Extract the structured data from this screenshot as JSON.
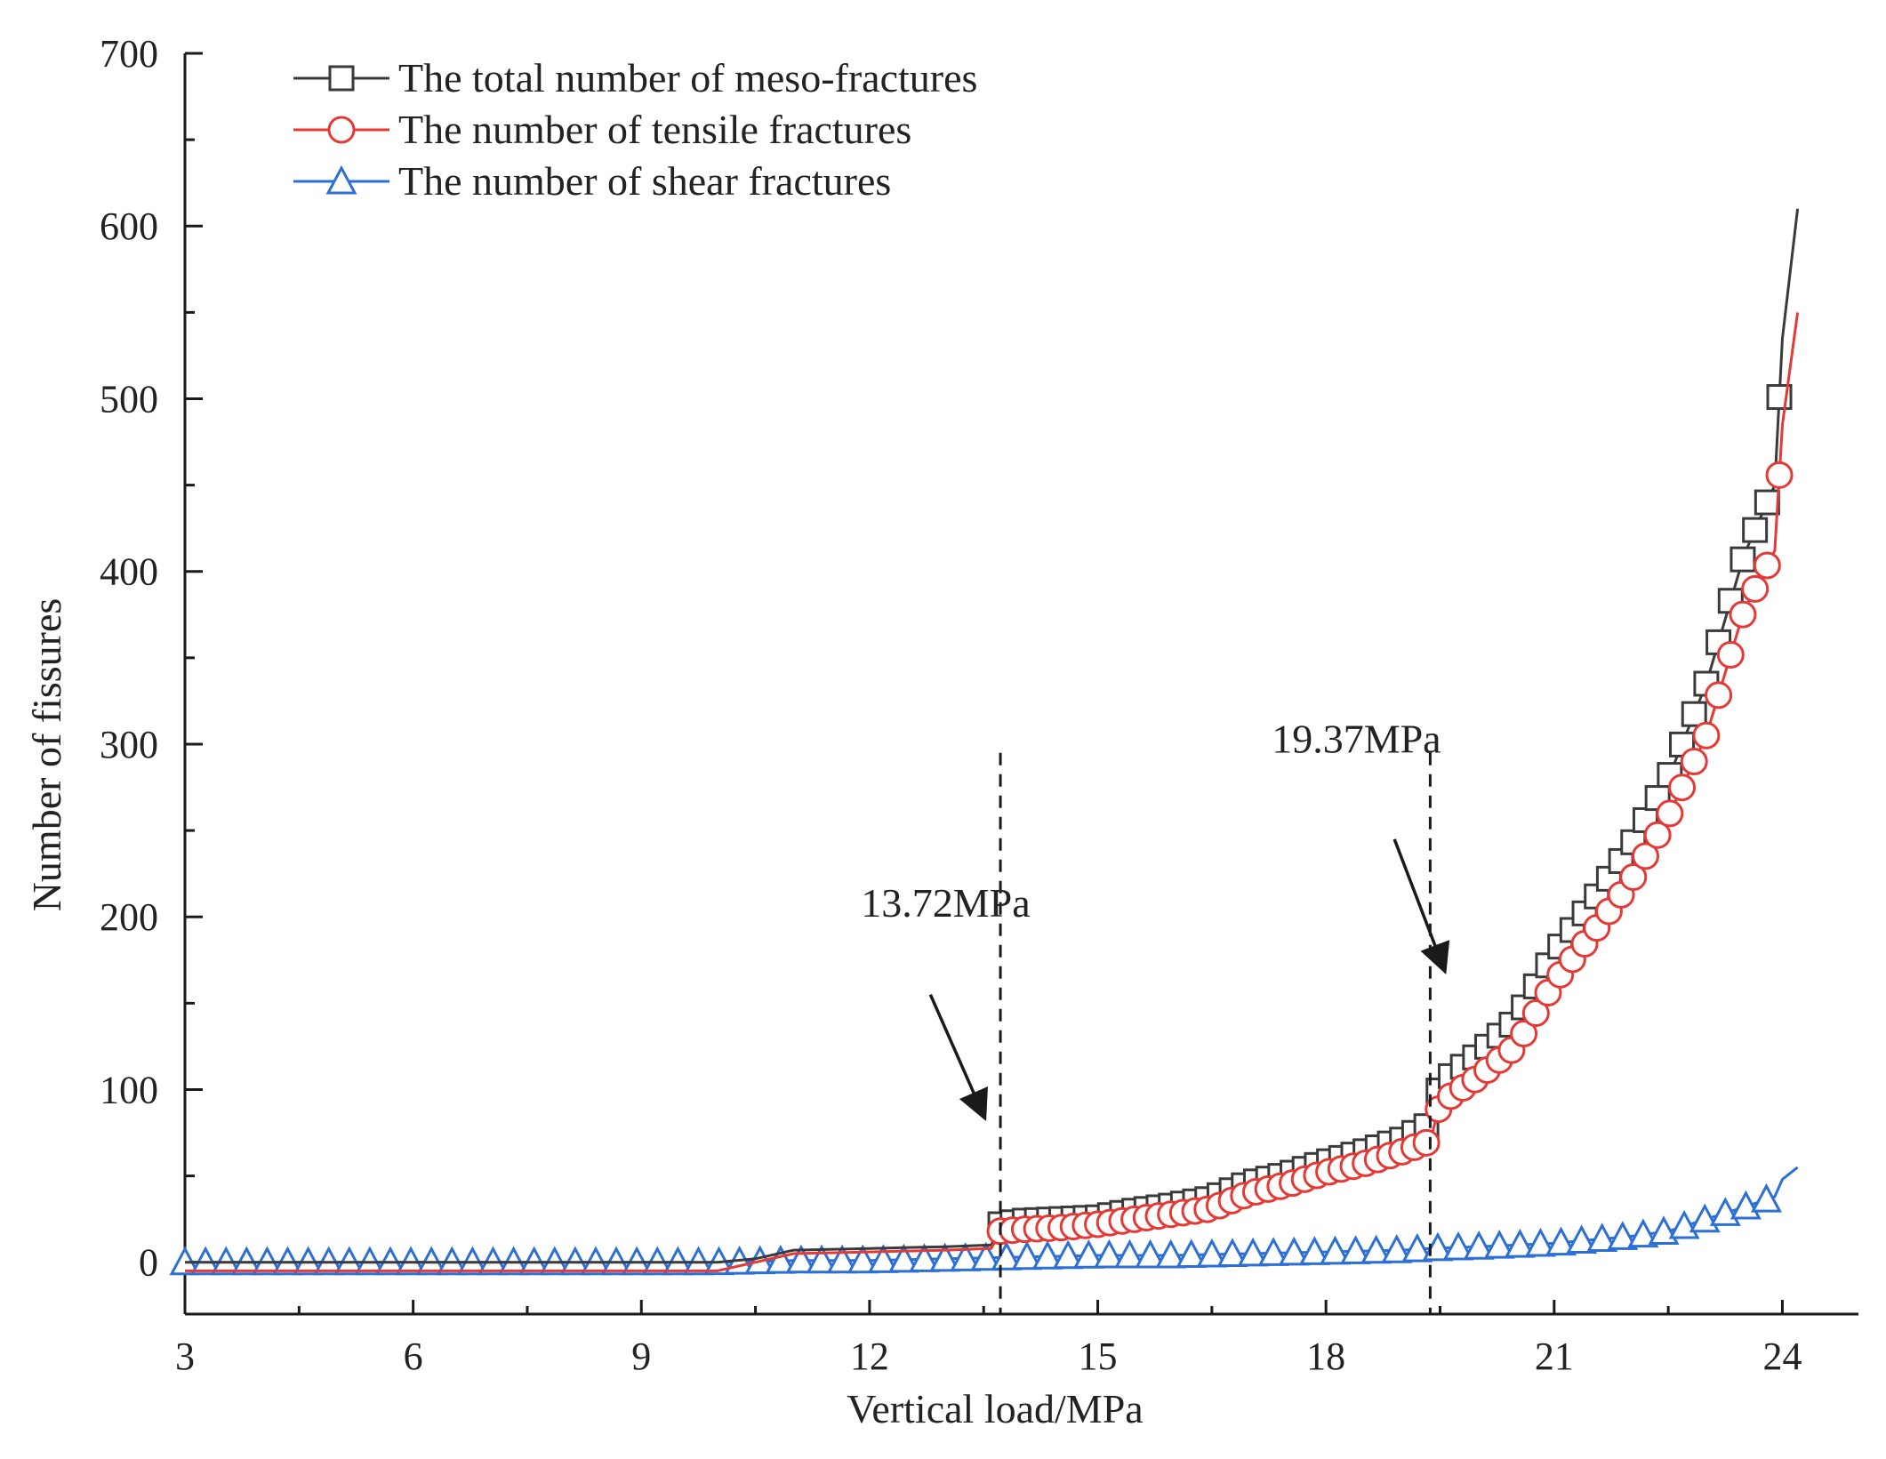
{
  "chart_data": {
    "type": "line",
    "title": "",
    "xlabel": "Vertical load/MPa",
    "ylabel": "Number of fissures",
    "xlim": [
      3,
      25
    ],
    "ylim": [
      -30,
      700
    ],
    "xticks": [
      3,
      6,
      9,
      12,
      15,
      18,
      21,
      24
    ],
    "yticks": [
      0,
      100,
      200,
      300,
      400,
      500,
      600,
      700
    ],
    "legend_position": "top-left",
    "colors": {
      "total": "#3a3a3a",
      "tensile": "#e53935",
      "shear": "#2c6fd6",
      "axis": "#1a1a1a"
    },
    "series": [
      {
        "name": "The total number of meso-fractures",
        "key": "total",
        "marker": "square",
        "x": [
          3.0,
          4.0,
          5.0,
          6.0,
          7.0,
          8.0,
          9.0,
          10.0,
          10.5,
          11.0,
          12.0,
          13.0,
          13.6,
          13.72,
          14.0,
          14.5,
          15.0,
          15.5,
          16.0,
          16.5,
          17.0,
          17.5,
          18.0,
          18.5,
          19.0,
          19.37,
          19.5,
          20.0,
          20.5,
          21.0,
          21.5,
          22.0,
          22.5,
          23.0,
          23.5,
          23.9,
          24.0,
          24.2
        ],
        "y": [
          0,
          0,
          0,
          0,
          0,
          0,
          0,
          0,
          2,
          7,
          8,
          9,
          10,
          22,
          24,
          25,
          26,
          30,
          33,
          37,
          46,
          51,
          58,
          64,
          71,
          80,
          103,
          120,
          140,
          178,
          208,
          240,
          280,
          335,
          410,
          450,
          535,
          610
        ]
      },
      {
        "name": "The number of tensile fractures",
        "key": "tensile",
        "marker": "circle",
        "x": [
          3.0,
          4.0,
          5.0,
          6.0,
          7.0,
          8.0,
          9.0,
          10.0,
          10.5,
          11.0,
          12.0,
          13.0,
          13.6,
          13.72,
          14.0,
          14.5,
          15.0,
          15.5,
          16.0,
          16.5,
          17.0,
          17.5,
          18.0,
          18.5,
          19.0,
          19.37,
          19.5,
          20.0,
          20.5,
          21.0,
          21.5,
          22.0,
          22.5,
          23.0,
          23.5,
          23.9,
          24.0,
          24.2
        ],
        "y": [
          -5,
          -5,
          -5,
          -5,
          -5,
          -5,
          -5,
          -5,
          0,
          5,
          6,
          7,
          8,
          18,
          19,
          20,
          22,
          25,
          28,
          31,
          40,
          45,
          52,
          57,
          64,
          70,
          92,
          107,
          125,
          162,
          190,
          220,
          258,
          305,
          378,
          412,
          485,
          550
        ]
      },
      {
        "name": "The number of shear fractures",
        "key": "shear",
        "marker": "triangle",
        "x": [
          3.0,
          4.0,
          5.0,
          6.0,
          7.0,
          8.0,
          9.0,
          10.0,
          11.0,
          12.0,
          13.0,
          14.0,
          15.0,
          16.0,
          17.0,
          18.0,
          19.0,
          19.37,
          20.0,
          21.0,
          22.0,
          22.5,
          23.0,
          23.5,
          23.9,
          24.0,
          24.2
        ],
        "y": [
          0,
          0,
          0,
          0,
          0,
          0,
          0,
          0,
          1,
          1,
          2,
          3,
          4,
          4,
          5,
          6,
          7,
          8,
          9,
          11,
          15,
          18,
          25,
          32,
          38,
          48,
          55
        ]
      }
    ],
    "annotations": [
      {
        "x": 13.72,
        "text": "13.72MPa",
        "text_at": [
          13.0,
          200
        ],
        "arrow_from": [
          12.8,
          155
        ],
        "arrow_to": [
          13.5,
          85
        ]
      },
      {
        "x": 19.37,
        "text": "19.37MPa",
        "text_at": [
          18.4,
          295
        ],
        "arrow_from": [
          18.9,
          245
        ],
        "arrow_to": [
          19.55,
          170
        ]
      }
    ]
  }
}
